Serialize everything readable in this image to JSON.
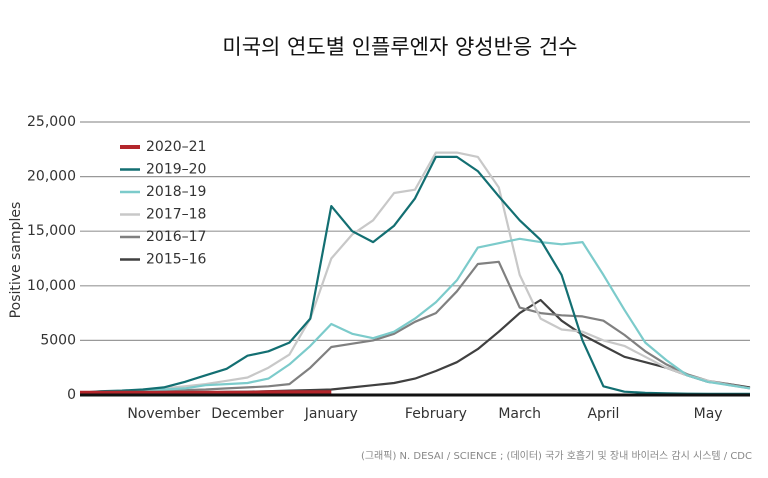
{
  "chart_data": {
    "type": "line",
    "title": "미국의 연도별 인플루엔자 양성반응 건수",
    "y_label": "Positive samples",
    "source": "(그래픽) N. DESAI / SCIENCE ; (데이터) 국가 호흡기 및 장내 바이러스 감시 시스템 / CDC",
    "categories": [
      null,
      null,
      null,
      null,
      "November",
      null,
      null,
      null,
      "December",
      null,
      null,
      null,
      "January",
      null,
      null,
      null,
      null,
      "February",
      null,
      null,
      null,
      "March",
      null,
      null,
      null,
      "April",
      null,
      null,
      null,
      null,
      "May",
      null,
      null
    ],
    "ylim": [
      0,
      25000
    ],
    "yticks": [
      0,
      5000,
      {
        "value": 10000,
        "label": "10,000"
      },
      {
        "value": 15000,
        "label": "15,000"
      },
      {
        "value": 20000,
        "label": "20,000"
      },
      {
        "value": 25000,
        "label": "25,000"
      }
    ],
    "grid": true,
    "legend": "upper left",
    "series": [
      {
        "name": "2020–21",
        "color": "#b3262b",
        "values": [
          200,
          200,
          200,
          200,
          200,
          200,
          200,
          200,
          200,
          250,
          250,
          250,
          250,
          null,
          null,
          null,
          null,
          null,
          null,
          null,
          null,
          null,
          null,
          null,
          null,
          null,
          null,
          null,
          null,
          null,
          null,
          null,
          null
        ]
      },
      {
        "name": "2019–20",
        "color": "#136f72",
        "values": [
          200,
          350,
          400,
          500,
          700,
          1200,
          1800,
          2400,
          3600,
          4000,
          4800,
          7000,
          17300,
          15000,
          14000,
          15500,
          18000,
          21800,
          21800,
          20500,
          18200,
          16000,
          14200,
          11000,
          5000,
          800,
          300,
          200,
          150,
          120,
          100,
          100,
          100
        ]
      },
      {
        "name": "2018–19",
        "color": "#7ccbcb",
        "values": [
          200,
          250,
          300,
          400,
          500,
          600,
          900,
          1000,
          1100,
          1500,
          2800,
          4500,
          6500,
          5600,
          5200,
          5800,
          7000,
          8500,
          10500,
          13500,
          13900,
          14300,
          14000,
          13800,
          14000,
          11000,
          7800,
          4800,
          3200,
          1800,
          1200,
          900,
          600
        ]
      },
      {
        "name": "2017–18",
        "color": "#c8c8c8",
        "values": [
          200,
          300,
          350,
          450,
          600,
          800,
          1000,
          1300,
          1600,
          2500,
          3700,
          7000,
          12500,
          14700,
          16000,
          18500,
          18800,
          22200,
          22200,
          21800,
          19000,
          11000,
          7000,
          6000,
          5800,
          5000,
          4500,
          3500,
          2500,
          1800,
          1300,
          900,
          600
        ]
      },
      {
        "name": "2016–17",
        "color": "#808080",
        "values": [
          200,
          250,
          300,
          350,
          400,
          450,
          500,
          600,
          700,
          800,
          1000,
          2500,
          4400,
          4700,
          5000,
          5600,
          6700,
          7500,
          9500,
          12000,
          12200,
          8000,
          7500,
          7300,
          7200,
          6800,
          5500,
          4000,
          2800,
          1900,
          1300,
          1000,
          600
        ]
      },
      {
        "name": "2015–16",
        "color": "#404040",
        "values": [
          100,
          120,
          150,
          180,
          200,
          220,
          250,
          280,
          300,
          350,
          400,
          450,
          500,
          700,
          900,
          1100,
          1500,
          2200,
          3000,
          4200,
          5800,
          7500,
          8700,
          6800,
          5500,
          4500,
          3500,
          3000,
          2500,
          1800,
          1200,
          1000,
          700
        ]
      }
    ]
  }
}
